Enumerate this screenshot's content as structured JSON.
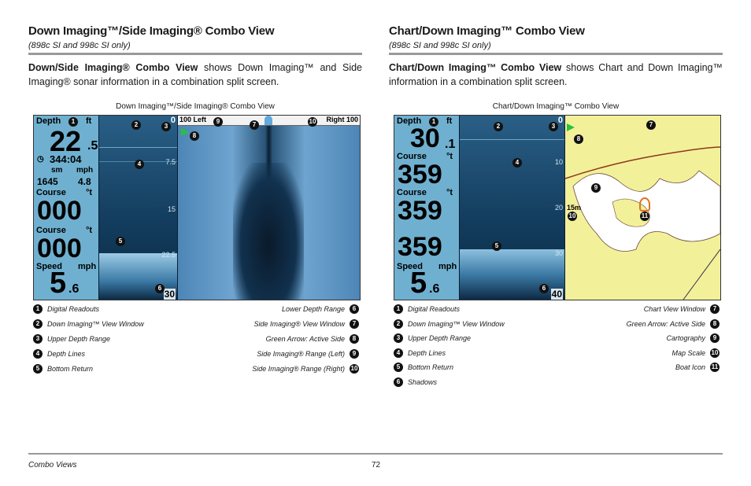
{
  "left": {
    "title": "Down Imaging™/Side Imaging® Combo View",
    "subtitle": "(898c SI and 998c SI only)",
    "desc_bold": "Down/Side Imaging® Combo View",
    "desc_rest": " shows Down Imaging™ and Side Imaging® sonar information in a combination split screen.",
    "caption": "Down Imaging™/Side Imaging® Combo View",
    "screen": {
      "depth_label": "Depth",
      "depth_unit": "ft",
      "depth_value": "22",
      "depth_decimal": ".5",
      "time": "344:04",
      "sm": "sm",
      "mph": "mph",
      "odo": "1645",
      "speed_small": "4.8",
      "course_label": "Course",
      "course_unit": "°t",
      "course_value": "000",
      "course2_label": "Course",
      "course2_unit": "°t",
      "course2_value": "000",
      "speed_label": "Speed",
      "speed_unit": "mph",
      "speed_value": "5",
      "speed_decimal": ".6",
      "upper_range": "0",
      "ticks": [
        "7.5",
        "15",
        "22.5"
      ],
      "lower_range": "30",
      "left_range": "100 Left",
      "right_range": "Right 100"
    },
    "legend_left": [
      "Digital Readouts",
      "Down Imaging™ View Window",
      "Upper Depth Range",
      "Depth Lines",
      "Bottom Return"
    ],
    "legend_right": [
      "Lower Depth Range",
      "Side Imaging® View Window",
      "Green Arrow: Active Side",
      "Side Imaging® Range (Left)",
      "Side Imaging® Range (Right)"
    ]
  },
  "right": {
    "title": "Chart/Down Imaging™ Combo View",
    "subtitle": "(898c SI and 998c SI only)",
    "desc_bold": "Chart/Down Imaging™ Combo View",
    "desc_rest": " shows Chart and Down Imaging™ information in a combination split screen.",
    "caption": "Chart/Down Imaging™ Combo View",
    "screen": {
      "depth_label": "Depth",
      "depth_unit": "ft",
      "depth_value": "30",
      "depth_decimal": ".1",
      "course_label": "Course",
      "course_unit": "°t",
      "course_value": "359",
      "course2_label": "Course",
      "course2_unit": "°t",
      "course2_value": "359",
      "course3_value": "359",
      "speed_label": "Speed",
      "speed_unit": "mph",
      "speed_value": "5",
      "speed_decimal": ".6",
      "upper_range": "0",
      "ticks": [
        "10",
        "20",
        "30"
      ],
      "lower_range": "40",
      "scale": "15m"
    },
    "legend_left": [
      "Digital Readouts",
      "Down Imaging™ View Window",
      "Upper Depth Range",
      "Depth Lines",
      "Bottom Return",
      "Shadows"
    ],
    "legend_right": [
      "Chart View Window",
      "Green Arrow: Active Side",
      "Cartography",
      "Map Scale",
      "Boat Icon"
    ]
  },
  "legend_numbers_left": [
    "1",
    "2",
    "3",
    "4",
    "5",
    "6"
  ],
  "legend_numbers_right": [
    "6",
    "7",
    "8",
    "9",
    "10",
    "11"
  ],
  "footer": {
    "section": "Combo Views",
    "page": "72"
  },
  "colors": {
    "readout_bg": "#6fb0d0",
    "sonar_bg": "#0b1e33",
    "chart_land": "#f3f09a",
    "chart_water": "#ffffff",
    "rule": "#999999"
  }
}
